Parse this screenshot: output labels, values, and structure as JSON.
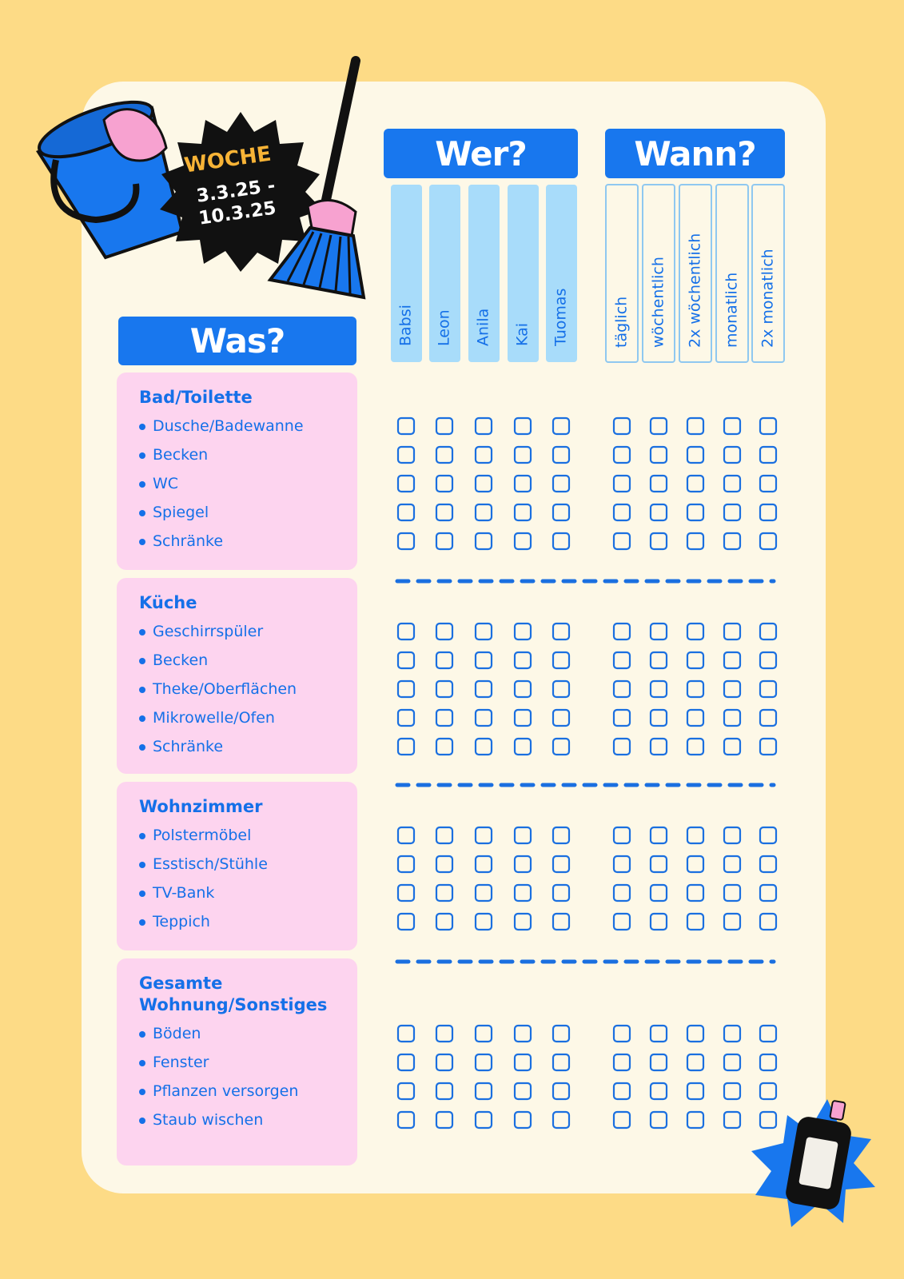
{
  "header": {
    "week_label": "WOCHE",
    "date_lines": [
      "3.3.25 -",
      "10.3.25"
    ]
  },
  "headings": {
    "was": "Was?",
    "wer": "Wer?",
    "wann": "Wann?"
  },
  "people": [
    "Babsi",
    "Leon",
    "Anila",
    "Kai",
    "Tuomas"
  ],
  "frequencies": [
    "täglich",
    "wöchentlich",
    "2x wöchentlich",
    "monatlich",
    "2x monatlich"
  ],
  "sections": [
    {
      "title": "Bad/Toilette",
      "items": [
        "Dusche/Badewanne",
        "Becken",
        "WC",
        "Spiegel",
        "Schränke"
      ]
    },
    {
      "title": "Küche",
      "items": [
        "Geschirrspüler",
        "Becken",
        "Theke/Oberflächen",
        "Mikrowelle/Ofen",
        "Schränke"
      ]
    },
    {
      "title": "Wohnzimmer",
      "items": [
        "Polstermöbel",
        "Esstisch/Stühle",
        "TV-Bank",
        "Teppich"
      ]
    },
    {
      "title": "Gesamte Wohnung/Sonstiges",
      "items": [
        "Böden",
        "Fenster",
        "Pflanzen versorgen",
        "Staub wischen"
      ]
    }
  ]
}
